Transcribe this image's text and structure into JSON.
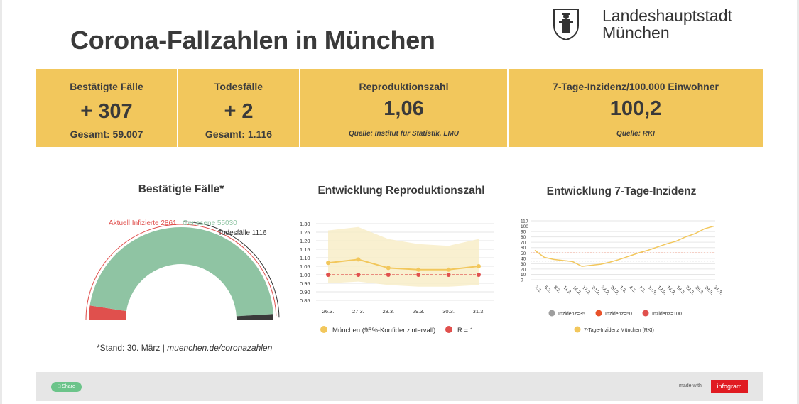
{
  "page": {
    "title": "Corona-Fallzahlen in München",
    "city_line1": "Landeshauptstadt",
    "city_line2": "München"
  },
  "kpis": [
    {
      "label": "Bestätigte Fälle",
      "value": "+ 307",
      "sub": "Gesamt: 59.007"
    },
    {
      "label": "Todesfälle",
      "value": "+ 2",
      "sub": "Gesamt: 1.116"
    },
    {
      "label": "Reproduktionszahl",
      "value": "1,06",
      "source": "Quelle: Institut für Statistik, LMU"
    },
    {
      "label": "7-Tage-Inzidenz/100.000 Einwohner",
      "value": "100,2",
      "source": "Quelle: RKI"
    }
  ],
  "colors": {
    "kpi_bg": "#f2c75c",
    "infected": "#e0504d",
    "recovered": "#8fc4a3",
    "deaths": "#3a3a3a",
    "r_line": "#f2c75c",
    "r_band": "#f8ecc4",
    "r_ref": "#e0504d",
    "ref35": "#9e9e9e",
    "ref50": "#e8522a",
    "ref100": "#e0504d"
  },
  "footnote": {
    "text": "*Stand: 30. März | ",
    "link": "muenchen.de/coronazahlen"
  },
  "footer": {
    "share": "Share",
    "made_with": "made with",
    "brand": "infogram"
  },
  "chart_data": [
    {
      "type": "pie",
      "title": "Bestätigte Fälle*",
      "labels": [
        "Aktuell Infizierte",
        "Genesene",
        "Todesfälle"
      ],
      "values": [
        2861,
        55030,
        1116
      ],
      "label_texts": [
        "Aktuell Infizierte 2861",
        "Genesene 55030",
        "Todesfälle 1116"
      ]
    },
    {
      "type": "line",
      "title": "Entwicklung Reproduktionszahl",
      "categories": [
        "26.3.",
        "27.3.",
        "28.3.",
        "29.3.",
        "30.3.",
        "31.3."
      ],
      "series": [
        {
          "name": "München (95%-Konfidenzintervall)",
          "values": [
            1.07,
            1.09,
            1.04,
            1.03,
            1.03,
            1.05
          ],
          "lower": [
            0.95,
            0.96,
            0.94,
            0.93,
            0.93,
            0.94
          ],
          "upper": [
            1.26,
            1.28,
            1.21,
            1.18,
            1.17,
            1.21
          ]
        },
        {
          "name": "R = 1",
          "values": [
            1.0,
            1.0,
            1.0,
            1.0,
            1.0,
            1.0
          ]
        }
      ],
      "yticks": [
        "1.30",
        "1.25",
        "1.20",
        "1.15",
        "1.10",
        "1.05",
        "1.00",
        "0.95",
        "0.90",
        "0.85"
      ],
      "ylim": [
        0.85,
        1.3
      ]
    },
    {
      "type": "line",
      "title": "Entwicklung 7-Tage-Inzidenz",
      "categories": [
        "2.2.",
        "5.2.",
        "8.2.",
        "11.2.",
        "14.2.",
        "17.2.",
        "20.2.",
        "23.2.",
        "26.2.",
        "1.3.",
        "4.3.",
        "7.3.",
        "10.3.",
        "13.3.",
        "16.3.",
        "19.3.",
        "22.3.",
        "25.3.",
        "28.3.",
        "31.3."
      ],
      "series": [
        {
          "name": "7-Tage-Inzidenz München (RKI)",
          "values": [
            55,
            42,
            38,
            36,
            34,
            25,
            27,
            29,
            33,
            38,
            44,
            50,
            55,
            61,
            67,
            72,
            80,
            86,
            95,
            100
          ]
        }
      ],
      "reference_lines": [
        {
          "name": "Inzidenz=35",
          "value": 35
        },
        {
          "name": "Inzidenz=50",
          "value": 50
        },
        {
          "name": "Inzidenz=100",
          "value": 100
        }
      ],
      "yticks": [
        "110",
        "100",
        "90",
        "80",
        "70",
        "60",
        "50",
        "40",
        "30",
        "20",
        "10",
        "0"
      ],
      "ylim": [
        0,
        110
      ]
    }
  ]
}
